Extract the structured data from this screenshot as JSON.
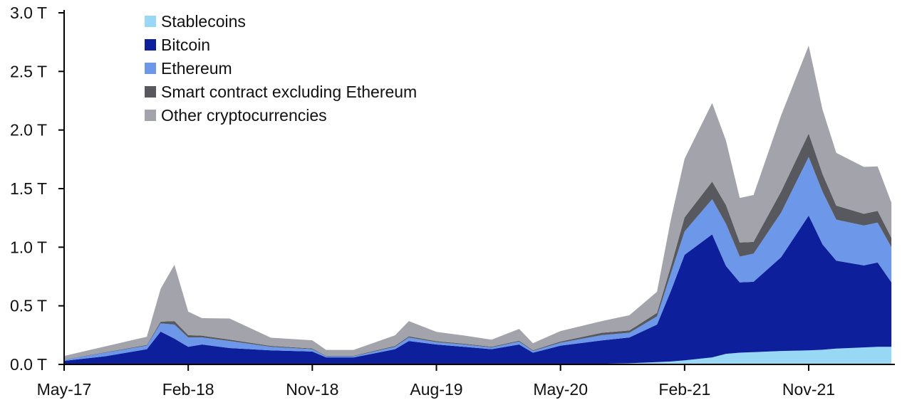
{
  "chart_data": {
    "type": "area",
    "stacked": true,
    "xlabel": "",
    "ylabel": "",
    "ylim": [
      0,
      3.0
    ],
    "y_ticks": [
      {
        "value": 0.0,
        "label": "0.0 T"
      },
      {
        "value": 0.5,
        "label": "0.5 T"
      },
      {
        "value": 1.0,
        "label": "1.0 T"
      },
      {
        "value": 1.5,
        "label": "1.5 T"
      },
      {
        "value": 2.0,
        "label": "2.0 T"
      },
      {
        "value": 2.5,
        "label": "2.5 T"
      },
      {
        "value": 3.0,
        "label": "3.0 T"
      }
    ],
    "x_ticks": [
      "May-17",
      "Feb-18",
      "Nov-18",
      "Aug-19",
      "May-20",
      "Feb-21",
      "Nov-21"
    ],
    "x": [
      "2017-05",
      "2017-08",
      "2017-11",
      "2017-12",
      "2018-01",
      "2018-02",
      "2018-03",
      "2018-05",
      "2018-08",
      "2018-11",
      "2018-12",
      "2019-02",
      "2019-05",
      "2019-06",
      "2019-08",
      "2019-10",
      "2019-12",
      "2020-02",
      "2020-03",
      "2020-05",
      "2020-08",
      "2020-10",
      "2020-12",
      "2021-01",
      "2021-02",
      "2021-04",
      "2021-05",
      "2021-06",
      "2021-07",
      "2021-09",
      "2021-11",
      "2021-12",
      "2022-01",
      "2022-03",
      "2022-04",
      "2022-05"
    ],
    "legend_position": "top-left",
    "grid": false,
    "series": [
      {
        "name": "Stablecoins",
        "color": "#99d8f5",
        "values": [
          0,
          0,
          0,
          0,
          0,
          0,
          0,
          0,
          0,
          0,
          0,
          0,
          0,
          0,
          0,
          0,
          0,
          0,
          0,
          0,
          0.005,
          0.01,
          0.02,
          0.025,
          0.035,
          0.06,
          0.09,
          0.1,
          0.105,
          0.115,
          0.12,
          0.125,
          0.135,
          0.145,
          0.15,
          0.15
        ]
      },
      {
        "name": "Bitcoin",
        "color": "#0d1f9a",
        "values": [
          0.03,
          0.07,
          0.13,
          0.28,
          0.22,
          0.15,
          0.17,
          0.14,
          0.12,
          0.11,
          0.06,
          0.06,
          0.13,
          0.2,
          0.17,
          0.15,
          0.13,
          0.17,
          0.1,
          0.16,
          0.2,
          0.22,
          0.32,
          0.6,
          0.9,
          1.05,
          0.75,
          0.6,
          0.6,
          0.8,
          1.15,
          0.9,
          0.75,
          0.7,
          0.72,
          0.55
        ]
      },
      {
        "name": "Ethereum",
        "color": "#6d97e8",
        "values": [
          0.01,
          0.03,
          0.03,
          0.07,
          0.12,
          0.08,
          0.06,
          0.06,
          0.03,
          0.02,
          0.01,
          0.01,
          0.02,
          0.03,
          0.02,
          0.02,
          0.015,
          0.025,
          0.015,
          0.025,
          0.045,
          0.04,
          0.07,
          0.15,
          0.2,
          0.3,
          0.36,
          0.22,
          0.24,
          0.38,
          0.5,
          0.45,
          0.35,
          0.34,
          0.34,
          0.3
        ]
      },
      {
        "name": "Smart contract excluding Ethereum",
        "color": "#58585f",
        "values": [
          0.002,
          0.004,
          0.006,
          0.015,
          0.03,
          0.02,
          0.015,
          0.012,
          0.008,
          0.006,
          0.004,
          0.004,
          0.008,
          0.01,
          0.008,
          0.007,
          0.006,
          0.008,
          0.006,
          0.01,
          0.02,
          0.02,
          0.03,
          0.06,
          0.12,
          0.15,
          0.16,
          0.12,
          0.1,
          0.18,
          0.2,
          0.15,
          0.12,
          0.1,
          0.1,
          0.08
        ]
      },
      {
        "name": "Other cryptocurrencies",
        "color": "#a3a3ab",
        "values": [
          0.03,
          0.05,
          0.07,
          0.28,
          0.48,
          0.2,
          0.15,
          0.18,
          0.07,
          0.07,
          0.05,
          0.05,
          0.09,
          0.13,
          0.08,
          0.07,
          0.06,
          0.1,
          0.06,
          0.09,
          0.1,
          0.13,
          0.18,
          0.4,
          0.5,
          0.67,
          0.55,
          0.38,
          0.4,
          0.65,
          0.75,
          0.55,
          0.45,
          0.4,
          0.38,
          0.3
        ]
      }
    ]
  }
}
